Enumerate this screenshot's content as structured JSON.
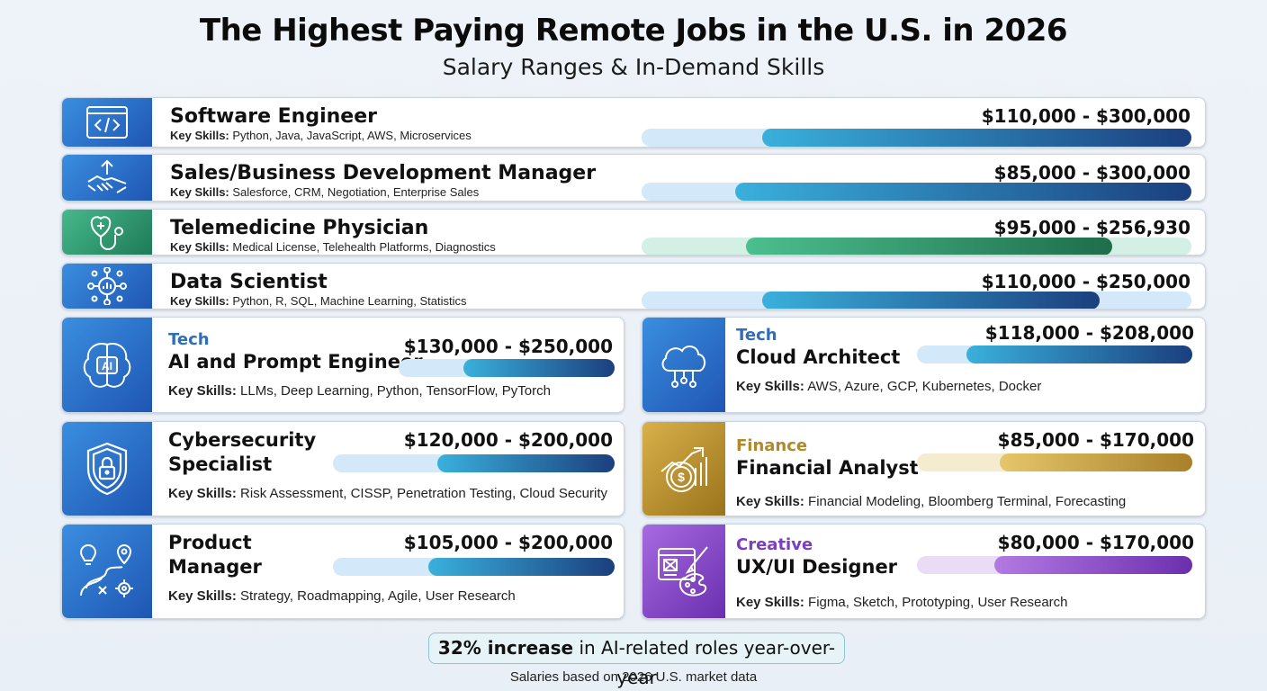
{
  "title": "The Highest Paying Remote Jobs in the U.S. in 2026",
  "subtitle": "Salary Ranges & In-Demand Skills",
  "skills_prefix": "Key Skills:",
  "wide_jobs": [
    {
      "name": "Software Engineer",
      "salary": "$110,000 - $300,000",
      "skills": "Python, Java, JavaScript, AWS, Microservices",
      "icon": "code-window-icon",
      "theme": "blue",
      "min": 110000,
      "max": 300000
    },
    {
      "name": "Sales/Business Development Manager",
      "salary": "$85,000 - $300,000",
      "skills": "Salesforce, CRM, Negotiation, Enterprise Sales",
      "icon": "handshake-growth-icon",
      "theme": "blue",
      "min": 85000,
      "max": 300000
    },
    {
      "name": "Telemedicine Physician",
      "salary": "$95,000 - $256,930",
      "skills": "Medical License, Telehealth Platforms, Diagnostics",
      "icon": "stethoscope-icon",
      "theme": "green",
      "min": 95000,
      "max": 256930
    },
    {
      "name": "Data Scientist",
      "salary": "$110,000 - $250,000",
      "skills": "Python, R, SQL, Machine Learning, Statistics",
      "icon": "data-network-icon",
      "theme": "blue",
      "min": 110000,
      "max": 250000
    }
  ],
  "box_jobs": [
    {
      "category": "Tech",
      "name": "AI and Prompt Engineer",
      "salary": "$130,000 - $250,000",
      "skills": "LLMs, Deep Learning, Python, TensorFlow, PyTorch",
      "icon": "ai-brain-icon",
      "theme": "blue",
      "fill_fraction": 0.7
    },
    {
      "category": "Tech",
      "name": "Cloud Architect",
      "salary": "$118,000 - $208,000",
      "skills": "AWS, Azure, GCP, Kubernetes, Docker",
      "icon": "cloud-icon",
      "theme": "blue",
      "fill_fraction": 0.82
    },
    {
      "category": "",
      "name": "Cybersecurity Specialist",
      "salary": "$120,000 - $200,000",
      "skills": "Risk Assessment, CISSP, Penetration Testing, Cloud Security",
      "icon": "shield-lock-icon",
      "theme": "blue",
      "fill_fraction": 0.63
    },
    {
      "category": "Finance",
      "name": "Financial Analyst",
      "salary": "$85,000 - $170,000",
      "skills": "Financial Modeling, Bloomberg Terminal, Forecasting",
      "icon": "finance-chart-icon",
      "theme": "gold",
      "fill_fraction": 0.7
    },
    {
      "category": "",
      "name": "Product Manager",
      "salary": "$105,000 - $200,000",
      "skills": "Strategy, Roadmapping, Agile, User Research",
      "icon": "roadmap-icon",
      "theme": "blue",
      "fill_fraction": 0.66
    },
    {
      "category": "Creative",
      "name": "UX/UI Designer",
      "salary": "$80,000 - $170,000",
      "skills": "Figma, Sketch, Prototyping, User Research",
      "icon": "design-palette-icon",
      "theme": "purple",
      "fill_fraction": 0.72
    }
  ],
  "stat": {
    "highlight": "32% increase",
    "rest": " in AI-related roles year-over-year"
  },
  "footer": "Salaries based on 2026 U.S. market data",
  "colors": {
    "blue_track": "#d3e8f8",
    "blue_start": "#3ab0dc",
    "blue_end": "#1b3f7e",
    "green_track": "#d4efe4",
    "green_start": "#4cbf8e",
    "green_end": "#1e6e4a",
    "gold_track": "#f5ecd0",
    "gold_start": "#e6c66a",
    "gold_end": "#a8802a",
    "purple_track": "#eadcf6",
    "purple_start": "#b37ae3",
    "purple_end": "#6b2fae",
    "tech_label": "#2f6fb8",
    "finance_label": "#b08a2a",
    "creative_label": "#7a3ec0"
  }
}
